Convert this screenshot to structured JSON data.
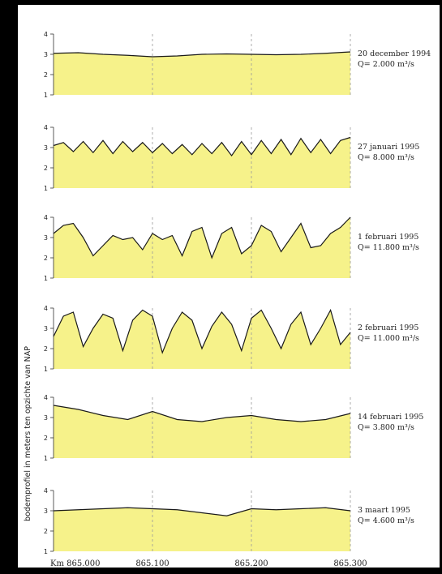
{
  "chart_data": {
    "type": "area",
    "ylabel": "bodemprofiel in meters ten opzichte van NAP",
    "x_ticks": [
      "Km 865.000",
      "865.100",
      "865.200",
      "865.300"
    ],
    "x_tick_values": [
      865.0,
      865.1,
      865.2,
      865.3
    ],
    "xlim": [
      865.0,
      865.3
    ],
    "ylim": [
      1,
      4
    ],
    "y_ticks": [
      "1",
      "2",
      "3",
      "4"
    ],
    "grid": "vertical dashed at x ticks",
    "colors": {
      "fill": "#f6f28a",
      "line": "#1a1a1a",
      "grid": "#999999"
    },
    "panels": [
      {
        "date": "20 december 1994",
        "discharge": "Q= 2.000 m³/s",
        "x": [
          865.0,
          865.025,
          865.05,
          865.075,
          865.1,
          865.125,
          865.15,
          865.175,
          865.2,
          865.225,
          865.25,
          865.275,
          865.3
        ],
        "y": [
          3.05,
          3.08,
          3.0,
          2.95,
          2.88,
          2.92,
          3.0,
          3.02,
          3.0,
          2.98,
          3.0,
          3.05,
          3.12
        ]
      },
      {
        "date": "27 januari 1995",
        "discharge": "Q= 8.000 m³/s",
        "x": [
          865.0,
          865.01,
          865.02,
          865.03,
          865.04,
          865.05,
          865.06,
          865.07,
          865.08,
          865.09,
          865.1,
          865.11,
          865.12,
          865.13,
          865.14,
          865.15,
          865.16,
          865.17,
          865.18,
          865.19,
          865.2,
          865.21,
          865.22,
          865.23,
          865.24,
          865.25,
          865.26,
          865.27,
          865.28,
          865.29,
          865.3
        ],
        "y": [
          3.1,
          3.25,
          2.8,
          3.3,
          2.75,
          3.35,
          2.7,
          3.3,
          2.8,
          3.25,
          2.75,
          3.2,
          2.7,
          3.15,
          2.65,
          3.2,
          2.7,
          3.25,
          2.6,
          3.3,
          2.65,
          3.35,
          2.7,
          3.4,
          2.65,
          3.45,
          2.75,
          3.4,
          2.7,
          3.35,
          3.5
        ]
      },
      {
        "date": "1 februari 1995",
        "discharge": "Q= 11.800 m³/s",
        "x": [
          865.0,
          865.01,
          865.02,
          865.03,
          865.04,
          865.05,
          865.06,
          865.07,
          865.08,
          865.09,
          865.1,
          865.11,
          865.12,
          865.13,
          865.14,
          865.15,
          865.16,
          865.17,
          865.18,
          865.19,
          865.2,
          865.21,
          865.22,
          865.23,
          865.24,
          865.25,
          865.26,
          865.27,
          865.28,
          865.29,
          865.3
        ],
        "y": [
          3.2,
          3.6,
          3.7,
          3.0,
          2.1,
          2.6,
          3.1,
          2.9,
          3.0,
          2.4,
          3.2,
          2.9,
          3.1,
          2.1,
          3.3,
          3.5,
          2.0,
          3.2,
          3.5,
          2.2,
          2.6,
          3.6,
          3.3,
          2.3,
          3.0,
          3.7,
          2.5,
          2.6,
          3.2,
          3.5,
          4.0
        ]
      },
      {
        "date": "2 februari 1995",
        "discharge": "Q= 11.000 m³/s",
        "x": [
          865.0,
          865.01,
          865.02,
          865.03,
          865.04,
          865.05,
          865.06,
          865.07,
          865.08,
          865.09,
          865.1,
          865.11,
          865.12,
          865.13,
          865.14,
          865.15,
          865.16,
          865.17,
          865.18,
          865.19,
          865.2,
          865.21,
          865.22,
          865.23,
          865.24,
          865.25,
          865.26,
          865.27,
          865.28,
          865.29,
          865.3
        ],
        "y": [
          2.6,
          3.6,
          3.8,
          2.1,
          3.0,
          3.7,
          3.5,
          1.9,
          3.4,
          3.9,
          3.6,
          1.8,
          3.0,
          3.8,
          3.4,
          2.0,
          3.1,
          3.8,
          3.2,
          1.9,
          3.5,
          3.9,
          3.0,
          2.0,
          3.2,
          3.8,
          2.2,
          3.0,
          3.9,
          2.2,
          2.8
        ]
      },
      {
        "date": "14 februari 1995",
        "discharge": "Q= 3.800 m³/s",
        "x": [
          865.0,
          865.025,
          865.05,
          865.075,
          865.1,
          865.125,
          865.15,
          865.175,
          865.2,
          865.225,
          865.25,
          865.275,
          865.3
        ],
        "y": [
          3.6,
          3.4,
          3.1,
          2.9,
          3.3,
          2.9,
          2.8,
          3.0,
          3.1,
          2.9,
          2.8,
          2.9,
          3.2
        ]
      },
      {
        "date": "3 maart 1995",
        "discharge": "Q= 4.600 m³/s",
        "x": [
          865.0,
          865.025,
          865.05,
          865.075,
          865.1,
          865.125,
          865.15,
          865.175,
          865.2,
          865.225,
          865.25,
          865.275,
          865.3
        ],
        "y": [
          3.0,
          3.05,
          3.1,
          3.15,
          3.1,
          3.05,
          2.9,
          2.75,
          3.1,
          3.05,
          3.1,
          3.15,
          3.0
        ]
      }
    ]
  }
}
